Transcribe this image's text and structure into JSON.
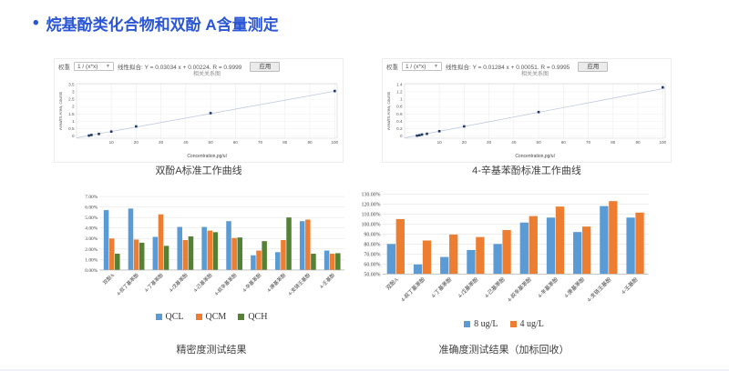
{
  "page": {
    "bullet": "•",
    "title": "烷基酚类化合物和双酚 A含量测定",
    "accent_color": "#2a56d6"
  },
  "chart_data": [
    {
      "type": "scatter",
      "title": "双酚A标准工作曲线",
      "toolbar": {
        "weight_label": "权重",
        "weight_value": "1 / (x*x)",
        "fit_label": "线性拟合:",
        "equation": "Y = 0.03034 x + 0.00224. R = 0.9999",
        "apply_label": "应用",
        "sub_link": "相关关系图"
      },
      "xlabel": "Concentration,pg/ul",
      "ylabel": "Area/IS Area, counts",
      "xlim": [
        -4,
        101
      ],
      "ylim": [
        -0.15,
        3.55
      ],
      "x_ticks": [
        10,
        20,
        30,
        40,
        50,
        60,
        70,
        80,
        90,
        100
      ],
      "y_ticks": [
        0,
        0.5,
        1,
        1.5,
        2,
        2.5,
        3,
        3.5
      ],
      "x": [
        1,
        2,
        5,
        10,
        20,
        50,
        100
      ],
      "y": [
        0.03,
        0.07,
        0.14,
        0.3,
        0.65,
        1.55,
        3.05
      ],
      "slope": 0.03034,
      "intercept": 0.00224,
      "point_color": "#1f3763",
      "line_color": "#b9c3dd"
    },
    {
      "type": "scatter",
      "title": "4-辛基苯酚标准工作曲线",
      "toolbar": {
        "weight_label": "权重",
        "weight_value": "1 / (x*x)",
        "fit_label": "线性拟合:",
        "equation": "Y = 0.01284 x + 0.00051. R = 0.9995",
        "apply_label": "应用",
        "sub_link": "相关关系图"
      },
      "xlabel": "Concentration,pg/ul",
      "ylabel": "Area/IS Area, counts",
      "xlim": [
        -4,
        101
      ],
      "ylim": [
        -0.06,
        1.42
      ],
      "x_ticks": [
        10,
        20,
        30,
        40,
        50,
        60,
        70,
        80,
        90,
        100
      ],
      "y_ticks": [
        0,
        0.2,
        0.4,
        0.6,
        0.8,
        1,
        1.2,
        1.4
      ],
      "x": [
        1,
        2,
        3,
        5,
        10,
        20,
        50,
        100
      ],
      "y": [
        0.01,
        0.02,
        0.04,
        0.06,
        0.13,
        0.26,
        0.65,
        1.32
      ],
      "slope": 0.01284,
      "intercept": 0.00051,
      "point_color": "#1f3763",
      "line_color": "#b9c3dd"
    },
    {
      "type": "bar",
      "title": "精密度测试结果",
      "ylim": [
        0,
        7
      ],
      "ytick_step": 1,
      "ytick_suffix": "%",
      "categories": [
        "双酚A",
        "4-叔丁基苯酚",
        "4-丁基苯酚",
        "4-戊基苯酚",
        "4-己基苯酚",
        "4-叔辛基苯酚",
        "4-辛基苯酚",
        "4-庚基苯酚",
        "4-支链壬基酚",
        "4-壬基酚"
      ],
      "series": [
        {
          "name": "QCL",
          "color": "#5b9bd5",
          "values": [
            5.7,
            5.85,
            3.15,
            4.1,
            4.1,
            4.65,
            1.4,
            1.7,
            4.65,
            1.85
          ]
        },
        {
          "name": "QCM",
          "color": "#ed7d31",
          "values": [
            3.0,
            2.9,
            5.3,
            2.85,
            3.75,
            3.05,
            1.85,
            2.85,
            4.8,
            1.55
          ]
        },
        {
          "name": "QCH",
          "color": "#548235",
          "values": [
            1.55,
            2.6,
            2.3,
            3.2,
            3.6,
            3.1,
            2.75,
            5.0,
            1.55,
            1.6
          ]
        }
      ]
    },
    {
      "type": "bar",
      "title": "准确度测试结果（加标回收）",
      "ylim": [
        50,
        130
      ],
      "ytick_step": 10,
      "ytick_suffix": "%",
      "categories": [
        "双酚A",
        "4-叔丁基苯酚",
        "4-丁基苯酚",
        "4-戊基苯酚",
        "4-己基苯酚",
        "4-叔辛基苯酚",
        "4-辛基苯酚",
        "4-庚基苯酚",
        "4-支链壬基酚",
        "4-壬基酚"
      ],
      "series": [
        {
          "name": "8 ug/L",
          "color": "#5b9bd5",
          "values": [
            80,
            59.5,
            67,
            74,
            80,
            101.5,
            106.5,
            92,
            118,
            106.5
          ]
        },
        {
          "name": "4 ug/L",
          "color": "#ed7d31",
          "values": [
            105,
            83.5,
            89.5,
            87,
            94,
            108,
            117.5,
            97.5,
            123,
            111.5
          ]
        }
      ]
    }
  ]
}
